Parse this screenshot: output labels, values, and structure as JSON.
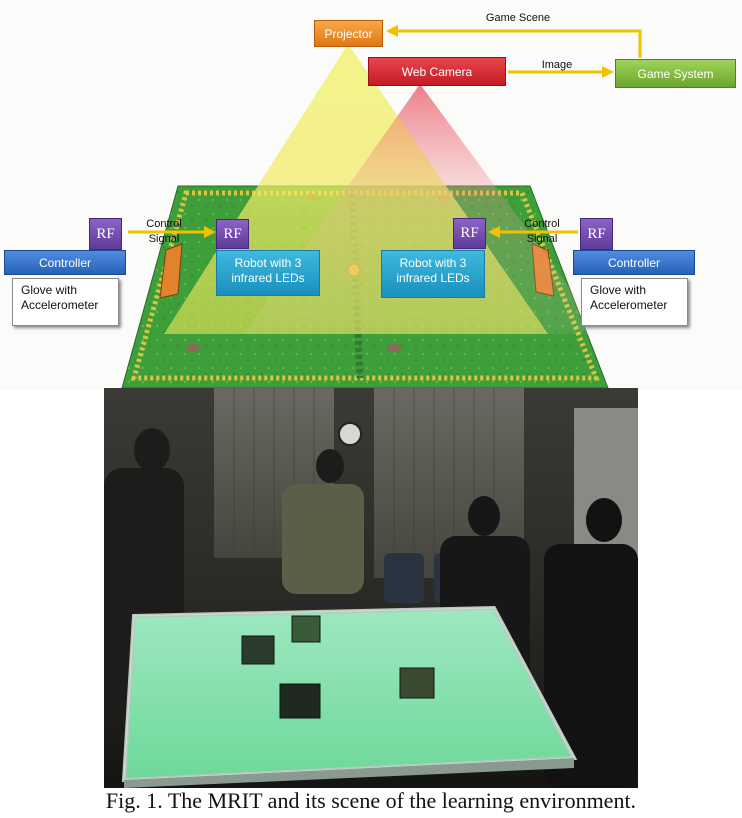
{
  "diagram": {
    "projector": "Projector",
    "web_camera": "Web Camera",
    "game_system": "Game System",
    "game_scene": "Game Scene",
    "image": "Image",
    "rf": "RF",
    "control_signal": "Control\nSignal",
    "controller": "Controller",
    "glove": "Glove with\nAccelerometer",
    "robot": "Robot with 3\ninfrared LEDs"
  },
  "caption": "Fig. 1. The MRIT and its scene of the learning environment."
}
